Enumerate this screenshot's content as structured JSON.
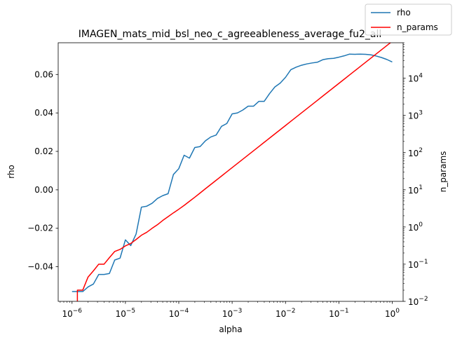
{
  "chart_data": {
    "type": "line",
    "title": "IMAGEN_mats_mid_bsl_neo_c_agreeableness_average_fu2_all",
    "xlabel": "alpha",
    "ylabel_left": "rho",
    "ylabel_right": "n_params",
    "x_scale": "log",
    "x_ticks": [
      "10^-6",
      "10^-5",
      "10^-4",
      "10^-3",
      "10^-2",
      "10^-1",
      "10^0"
    ],
    "xlim": [
      5.5e-07,
      1.6
    ],
    "y_left_lim": [
      -0.058,
      0.0765
    ],
    "y_left_ticks": [
      "−0.04",
      "−0.02",
      "0.00",
      "0.02",
      "0.04",
      "0.06"
    ],
    "y_left_tick_values": [
      -0.04,
      -0.02,
      0.0,
      0.02,
      0.04,
      0.06
    ],
    "y_right_scale": "log",
    "y_right_lim": [
      0.01,
      90000
    ],
    "y_right_ticks": [
      "10^-2",
      "10^-1",
      "10^0",
      "10^1",
      "10^2",
      "10^3",
      "10^4"
    ],
    "legend": {
      "placement": "top-right",
      "entries": [
        "rho",
        "n_params"
      ]
    },
    "colors": {
      "rho": "#1f77b4",
      "n_params": "#ff0000"
    },
    "series": [
      {
        "name": "rho",
        "axis": "left",
        "color": "#1f77b4",
        "x": [
          1e-06,
          1.259e-06,
          1.585e-06,
          1.995e-06,
          2.512e-06,
          3.162e-06,
          3.981e-06,
          5.012e-06,
          6.31e-06,
          7.943e-06,
          1e-05,
          1.259e-05,
          1.585e-05,
          1.995e-05,
          2.512e-05,
          3.162e-05,
          3.981e-05,
          5.012e-05,
          6.31e-05,
          7.943e-05,
          0.0001,
          0.0001259,
          0.0001585,
          0.0001995,
          0.0002512,
          0.0003162,
          0.0003981,
          0.0005012,
          0.000631,
          0.0007943,
          0.001,
          0.001259,
          0.001585,
          0.001995,
          0.002512,
          0.003162,
          0.003981,
          0.005012,
          0.00631,
          0.007943,
          0.01,
          0.01259,
          0.01585,
          0.01995,
          0.02512,
          0.03162,
          0.03981,
          0.05012,
          0.0631,
          0.07943,
          0.1,
          0.1259,
          0.1585,
          0.1995,
          0.2512,
          0.3162,
          0.3981,
          0.5012,
          0.631,
          0.7943,
          1.0
        ],
        "values": [
          -0.0529,
          -0.0529,
          -0.0529,
          -0.0505,
          -0.049,
          -0.044,
          -0.044,
          -0.0435,
          -0.0365,
          -0.0355,
          -0.026,
          -0.029,
          -0.023,
          -0.009,
          -0.0085,
          -0.007,
          -0.0045,
          -0.003,
          -0.002,
          0.008,
          0.011,
          0.018,
          0.0165,
          0.022,
          0.0225,
          0.0255,
          0.0275,
          0.0285,
          0.033,
          0.0345,
          0.0395,
          0.04,
          0.0415,
          0.0435,
          0.0435,
          0.046,
          0.046,
          0.05,
          0.0535,
          0.0555,
          0.0585,
          0.0625,
          0.0638,
          0.0648,
          0.0655,
          0.066,
          0.0664,
          0.0677,
          0.0682,
          0.0684,
          0.069,
          0.0697,
          0.0706,
          0.0705,
          0.0706,
          0.0705,
          0.0702,
          0.0696,
          0.0688,
          0.0678,
          0.0665
        ]
      },
      {
        "name": "n_params",
        "axis": "right",
        "color": "#ff0000",
        "x": [
          1.259e-06,
          1.259e-06,
          1.585e-06,
          1.995e-06,
          2.512e-06,
          3.162e-06,
          3.981e-06,
          5.012e-06,
          6.31e-06,
          7.943e-06,
          1e-05,
          1.259e-05,
          1.585e-05,
          1.995e-05,
          2.512e-05,
          3.162e-05,
          3.981e-05,
          5.012e-05,
          6.31e-05,
          7.943e-05,
          0.0001,
          0.0001259,
          0.0001585,
          0.0001995,
          0.0002512,
          0.0003162,
          0.0003981,
          0.0005012,
          0.000631,
          0.0007943,
          0.001,
          0.001259,
          0.001585,
          0.001995,
          0.002512,
          0.003162,
          0.003981,
          0.005012,
          0.00631,
          0.007943,
          0.01,
          0.01259,
          0.01585,
          0.01995,
          0.02512,
          0.03162,
          0.03981,
          0.05012,
          0.0631,
          0.07943,
          0.1,
          0.1259,
          0.1585,
          0.1995,
          0.2512,
          0.3162,
          0.3981,
          0.5012,
          0.631,
          0.7943,
          1.0
        ],
        "values": [
          0.005,
          0.02,
          0.02,
          0.045,
          0.066,
          0.1,
          0.1,
          0.15,
          0.22,
          0.25,
          0.31,
          0.36,
          0.46,
          0.6,
          0.72,
          0.92,
          1.15,
          1.5,
          1.9,
          2.4,
          3.0,
          3.8,
          4.9,
          6.3,
          8.2,
          10.7,
          13.9,
          18.0,
          23.4,
          30.4,
          39.4,
          51.2,
          66.4,
          86.2,
          111.9,
          145.2,
          188.5,
          244.7,
          317.6,
          412.2,
          535.1,
          694.6,
          901.6,
          1170,
          1519,
          1972,
          2560,
          3323,
          4313,
          5598,
          7266,
          9431,
          12241,
          15888,
          20622,
          26767,
          34743,
          45095,
          58531,
          75970,
          98600
        ]
      }
    ]
  }
}
